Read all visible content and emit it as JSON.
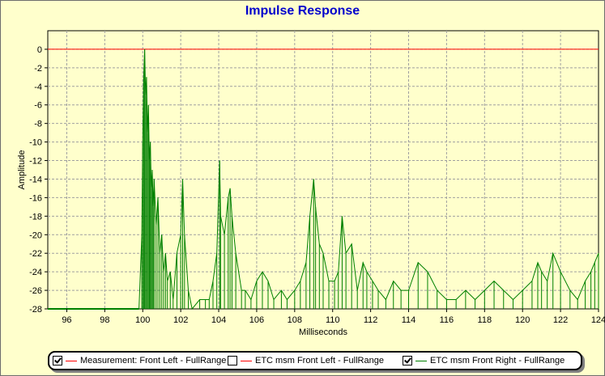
{
  "chart_data": {
    "type": "line",
    "title": "Impulse Response",
    "xlabel": "Milliseconds",
    "ylabel": "Amplitude",
    "xlim": [
      95,
      124
    ],
    "ylim": [
      -28,
      2
    ],
    "x_ticks": [
      "96",
      "98",
      "100",
      "102",
      "104",
      "106",
      "108",
      "110",
      "112",
      "114",
      "116",
      "118",
      "120",
      "122",
      "124"
    ],
    "y_ticks": [
      "0",
      "-2",
      "-4",
      "-6",
      "-8",
      "-10",
      "-12",
      "-14",
      "-16",
      "-18",
      "-20",
      "-22",
      "-24",
      "-26",
      "-28"
    ],
    "grid": true,
    "colors": {
      "reference": "#ff0000",
      "measurement": "#008000",
      "background": "#ffffcc",
      "grid": "#a0a0a0",
      "title": "#0000cc"
    },
    "series": [
      {
        "name": "ETC msm Front Right - FullRange",
        "color": "#008000",
        "peaks": [
          [
            99.8,
            -28
          ],
          [
            99.95,
            -20
          ],
          [
            100.0,
            -10
          ],
          [
            100.05,
            -3
          ],
          [
            100.1,
            0
          ],
          [
            100.15,
            -5
          ],
          [
            100.2,
            -3
          ],
          [
            100.25,
            -9
          ],
          [
            100.3,
            -6
          ],
          [
            100.35,
            -12
          ],
          [
            100.4,
            -10
          ],
          [
            100.45,
            -15
          ],
          [
            100.5,
            -13
          ],
          [
            100.55,
            -17
          ],
          [
            100.6,
            -14
          ],
          [
            100.7,
            -19
          ],
          [
            100.8,
            -16
          ],
          [
            100.9,
            -22
          ],
          [
            101.0,
            -20
          ],
          [
            101.1,
            -24
          ],
          [
            101.2,
            -22
          ],
          [
            101.3,
            -25
          ],
          [
            101.45,
            -24
          ],
          [
            101.6,
            -27
          ],
          [
            101.8,
            -22
          ],
          [
            102.0,
            -20
          ],
          [
            102.1,
            -14
          ],
          [
            102.2,
            -20
          ],
          [
            102.4,
            -26
          ],
          [
            102.6,
            -28
          ],
          [
            103.0,
            -27
          ],
          [
            103.3,
            -27
          ],
          [
            103.5,
            -27
          ],
          [
            103.7,
            -25
          ],
          [
            103.9,
            -22
          ],
          [
            104.05,
            -12
          ],
          [
            104.1,
            -18
          ],
          [
            104.3,
            -20
          ],
          [
            104.5,
            -16
          ],
          [
            104.6,
            -15
          ],
          [
            104.7,
            -18
          ],
          [
            104.9,
            -22
          ],
          [
            105.2,
            -26
          ],
          [
            105.4,
            -26
          ],
          [
            105.7,
            -27
          ],
          [
            106.0,
            -25
          ],
          [
            106.3,
            -24
          ],
          [
            106.6,
            -25
          ],
          [
            106.9,
            -27
          ],
          [
            107.3,
            -26
          ],
          [
            107.6,
            -27
          ],
          [
            108.0,
            -26
          ],
          [
            108.3,
            -25
          ],
          [
            108.6,
            -23
          ],
          [
            108.8,
            -18
          ],
          [
            109.0,
            -14
          ],
          [
            109.1,
            -17
          ],
          [
            109.3,
            -21
          ],
          [
            109.5,
            -22
          ],
          [
            109.8,
            -25
          ],
          [
            110.1,
            -25
          ],
          [
            110.3,
            -24
          ],
          [
            110.5,
            -18
          ],
          [
            110.7,
            -22
          ],
          [
            111.0,
            -21
          ],
          [
            111.3,
            -26
          ],
          [
            111.6,
            -23
          ],
          [
            111.8,
            -24
          ],
          [
            112.1,
            -25
          ],
          [
            112.4,
            -26
          ],
          [
            112.8,
            -27
          ],
          [
            113.2,
            -25
          ],
          [
            113.6,
            -26
          ],
          [
            114.0,
            -26
          ],
          [
            114.5,
            -23
          ],
          [
            115.0,
            -24
          ],
          [
            115.5,
            -26
          ],
          [
            116.0,
            -27
          ],
          [
            116.5,
            -27
          ],
          [
            117.0,
            -26
          ],
          [
            117.5,
            -27
          ],
          [
            118.0,
            -26
          ],
          [
            118.5,
            -25
          ],
          [
            119.0,
            -26
          ],
          [
            119.5,
            -27
          ],
          [
            120.0,
            -26
          ],
          [
            120.5,
            -25
          ],
          [
            120.8,
            -23
          ],
          [
            121.0,
            -24
          ],
          [
            121.3,
            -25
          ],
          [
            121.6,
            -22
          ],
          [
            122.0,
            -24
          ],
          [
            122.5,
            -26
          ],
          [
            122.9,
            -27
          ],
          [
            123.3,
            -25
          ],
          [
            123.6,
            -24
          ],
          [
            123.8,
            -23
          ],
          [
            124.0,
            -22
          ]
        ]
      }
    ],
    "reference_line": {
      "name": "Measurement: Front Left - FullRange",
      "y": 0,
      "color": "#ff0000"
    }
  },
  "legend": {
    "items": [
      {
        "label": "Measurement: Front Left - FullRange",
        "checked": true,
        "color": "#ff0000"
      },
      {
        "label": "ETC msm Front Left - FullRange",
        "checked": false,
        "color": "#ff0000"
      },
      {
        "label": "ETC msm Front Right - FullRange",
        "checked": true,
        "color": "#008000"
      }
    ]
  }
}
